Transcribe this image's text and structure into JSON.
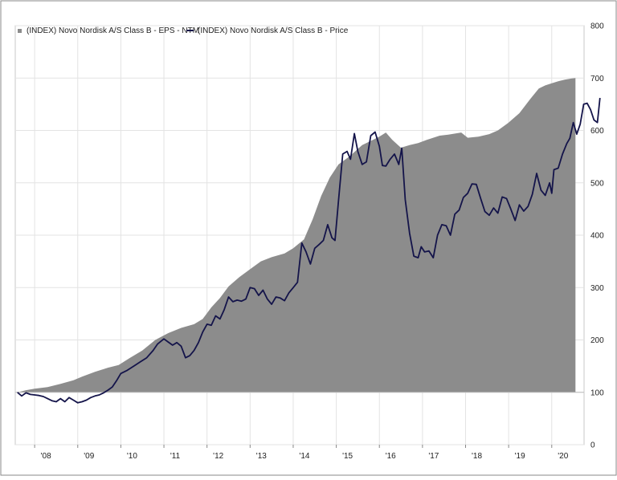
{
  "chart_data": {
    "type": "area",
    "title": "",
    "xlabel": "",
    "ylabel": "",
    "ylim": [
      0,
      800
    ],
    "xlim": [
      2007.55,
      2020.75
    ],
    "yticks": [
      0,
      100,
      200,
      300,
      400,
      500,
      600,
      700,
      800
    ],
    "baseline": 100,
    "xtick_labels": [
      {
        "label": "'08",
        "x": 2008.0
      },
      {
        "label": "'09",
        "x": 2009.0
      },
      {
        "label": "'10",
        "x": 2010.0
      },
      {
        "label": "'11",
        "x": 2011.0
      },
      {
        "label": "'12",
        "x": 2012.0
      },
      {
        "label": "'13",
        "x": 2013.0
      },
      {
        "label": "'14",
        "x": 2014.0
      },
      {
        "label": "'15",
        "x": 2015.0
      },
      {
        "label": "'16",
        "x": 2016.0
      },
      {
        "label": "'17",
        "x": 2017.0
      },
      {
        "label": "'18",
        "x": 2018.0
      },
      {
        "label": "'19",
        "x": 2019.0
      },
      {
        "label": "'20",
        "x": 2020.0
      }
    ],
    "grid": true,
    "legend_position": "top-left",
    "series": [
      {
        "name": "(INDEX) Novo Nordisk A/S Class B - EPS - NTM",
        "kind": "area",
        "color": "#8c8c8c",
        "points": [
          [
            2007.6,
            100
          ],
          [
            2007.8,
            104
          ],
          [
            2008.0,
            107
          ],
          [
            2008.3,
            110
          ],
          [
            2008.6,
            116
          ],
          [
            2008.9,
            123
          ],
          [
            2009.1,
            130
          ],
          [
            2009.4,
            139
          ],
          [
            2009.7,
            147
          ],
          [
            2009.95,
            152
          ],
          [
            2010.2,
            165
          ],
          [
            2010.5,
            180
          ],
          [
            2010.8,
            200
          ],
          [
            2011.1,
            213
          ],
          [
            2011.4,
            223
          ],
          [
            2011.7,
            230
          ],
          [
            2011.9,
            240
          ],
          [
            2012.1,
            262
          ],
          [
            2012.3,
            280
          ],
          [
            2012.5,
            302
          ],
          [
            2012.75,
            320
          ],
          [
            2013.0,
            335
          ],
          [
            2013.25,
            350
          ],
          [
            2013.5,
            358
          ],
          [
            2013.8,
            365
          ],
          [
            2014.0,
            375
          ],
          [
            2014.25,
            392
          ],
          [
            2014.45,
            430
          ],
          [
            2014.65,
            475
          ],
          [
            2014.85,
            510
          ],
          [
            2015.05,
            535
          ],
          [
            2015.3,
            550
          ],
          [
            2015.6,
            572
          ],
          [
            2015.85,
            582
          ],
          [
            2016.0,
            588
          ],
          [
            2016.15,
            596
          ],
          [
            2016.3,
            582
          ],
          [
            2016.5,
            567
          ],
          [
            2016.7,
            572
          ],
          [
            2016.9,
            576
          ],
          [
            2017.1,
            582
          ],
          [
            2017.4,
            590
          ],
          [
            2017.6,
            592
          ],
          [
            2017.9,
            596
          ],
          [
            2018.05,
            586
          ],
          [
            2018.3,
            588
          ],
          [
            2018.55,
            593
          ],
          [
            2018.75,
            600
          ],
          [
            2019.0,
            615
          ],
          [
            2019.25,
            633
          ],
          [
            2019.5,
            660
          ],
          [
            2019.7,
            680
          ],
          [
            2019.85,
            686
          ],
          [
            2020.0,
            690
          ],
          [
            2020.15,
            694
          ],
          [
            2020.3,
            697
          ],
          [
            2020.45,
            699
          ],
          [
            2020.55,
            700
          ]
        ]
      },
      {
        "name": "(INDEX) Novo Nordisk A/S Class B - Price",
        "kind": "line",
        "color": "#14144a",
        "points": [
          [
            2007.6,
            100
          ],
          [
            2007.7,
            93
          ],
          [
            2007.8,
            99
          ],
          [
            2007.9,
            96
          ],
          [
            2008.0,
            95
          ],
          [
            2008.1,
            94
          ],
          [
            2008.2,
            92
          ],
          [
            2008.3,
            88
          ],
          [
            2008.4,
            84
          ],
          [
            2008.5,
            82
          ],
          [
            2008.6,
            88
          ],
          [
            2008.7,
            82
          ],
          [
            2008.8,
            90
          ],
          [
            2008.9,
            85
          ],
          [
            2009.0,
            80
          ],
          [
            2009.1,
            82
          ],
          [
            2009.2,
            85
          ],
          [
            2009.3,
            90
          ],
          [
            2009.4,
            93
          ],
          [
            2009.5,
            95
          ],
          [
            2009.6,
            99
          ],
          [
            2009.7,
            104
          ],
          [
            2009.8,
            110
          ],
          [
            2009.9,
            122
          ],
          [
            2010.0,
            136
          ],
          [
            2010.15,
            142
          ],
          [
            2010.3,
            150
          ],
          [
            2010.45,
            158
          ],
          [
            2010.6,
            166
          ],
          [
            2010.75,
            180
          ],
          [
            2010.85,
            192
          ],
          [
            2011.0,
            202
          ],
          [
            2011.1,
            196
          ],
          [
            2011.2,
            190
          ],
          [
            2011.3,
            195
          ],
          [
            2011.4,
            188
          ],
          [
            2011.5,
            166
          ],
          [
            2011.6,
            170
          ],
          [
            2011.7,
            180
          ],
          [
            2011.8,
            195
          ],
          [
            2011.9,
            215
          ],
          [
            2012.0,
            230
          ],
          [
            2012.1,
            228
          ],
          [
            2012.2,
            246
          ],
          [
            2012.3,
            240
          ],
          [
            2012.4,
            258
          ],
          [
            2012.5,
            282
          ],
          [
            2012.6,
            273
          ],
          [
            2012.7,
            276
          ],
          [
            2012.8,
            274
          ],
          [
            2012.9,
            278
          ],
          [
            2013.0,
            300
          ],
          [
            2013.1,
            298
          ],
          [
            2013.2,
            285
          ],
          [
            2013.3,
            295
          ],
          [
            2013.4,
            278
          ],
          [
            2013.5,
            268
          ],
          [
            2013.6,
            282
          ],
          [
            2013.7,
            280
          ],
          [
            2013.8,
            275
          ],
          [
            2013.9,
            290
          ],
          [
            2014.0,
            300
          ],
          [
            2014.1,
            310
          ],
          [
            2014.2,
            385
          ],
          [
            2014.3,
            368
          ],
          [
            2014.4,
            345
          ],
          [
            2014.5,
            375
          ],
          [
            2014.6,
            382
          ],
          [
            2014.7,
            390
          ],
          [
            2014.8,
            420
          ],
          [
            2014.9,
            395
          ],
          [
            2014.97,
            390
          ],
          [
            2015.05,
            465
          ],
          [
            2015.15,
            555
          ],
          [
            2015.25,
            560
          ],
          [
            2015.33,
            545
          ],
          [
            2015.42,
            594
          ],
          [
            2015.5,
            560
          ],
          [
            2015.6,
            535
          ],
          [
            2015.7,
            540
          ],
          [
            2015.8,
            590
          ],
          [
            2015.9,
            597
          ],
          [
            2016.0,
            570
          ],
          [
            2016.07,
            533
          ],
          [
            2016.15,
            532
          ],
          [
            2016.25,
            545
          ],
          [
            2016.35,
            555
          ],
          [
            2016.45,
            535
          ],
          [
            2016.52,
            566
          ],
          [
            2016.6,
            468
          ],
          [
            2016.7,
            404
          ],
          [
            2016.8,
            360
          ],
          [
            2016.9,
            357
          ],
          [
            2016.97,
            378
          ],
          [
            2017.05,
            368
          ],
          [
            2017.15,
            370
          ],
          [
            2017.25,
            357
          ],
          [
            2017.35,
            400
          ],
          [
            2017.45,
            420
          ],
          [
            2017.55,
            418
          ],
          [
            2017.65,
            400
          ],
          [
            2017.75,
            440
          ],
          [
            2017.85,
            448
          ],
          [
            2017.95,
            472
          ],
          [
            2018.05,
            480
          ],
          [
            2018.15,
            498
          ],
          [
            2018.25,
            497
          ],
          [
            2018.35,
            470
          ],
          [
            2018.45,
            445
          ],
          [
            2018.55,
            438
          ],
          [
            2018.65,
            452
          ],
          [
            2018.75,
            442
          ],
          [
            2018.85,
            473
          ],
          [
            2018.95,
            470
          ],
          [
            2019.05,
            450
          ],
          [
            2019.15,
            428
          ],
          [
            2019.25,
            458
          ],
          [
            2019.35,
            446
          ],
          [
            2019.45,
            455
          ],
          [
            2019.55,
            478
          ],
          [
            2019.65,
            518
          ],
          [
            2019.75,
            486
          ],
          [
            2019.85,
            476
          ],
          [
            2019.95,
            500
          ],
          [
            2020.0,
            480
          ],
          [
            2020.05,
            525
          ],
          [
            2020.15,
            528
          ],
          [
            2020.25,
            555
          ],
          [
            2020.35,
            575
          ],
          [
            2020.42,
            585
          ],
          [
            2020.5,
            615
          ],
          [
            2020.58,
            593
          ],
          [
            2020.66,
            612
          ],
          [
            2020.74,
            650
          ],
          [
            2020.82,
            652
          ],
          [
            2020.9,
            640
          ],
          [
            2020.98,
            620
          ],
          [
            2021.06,
            615
          ],
          [
            2021.12,
            662
          ]
        ]
      }
    ]
  }
}
